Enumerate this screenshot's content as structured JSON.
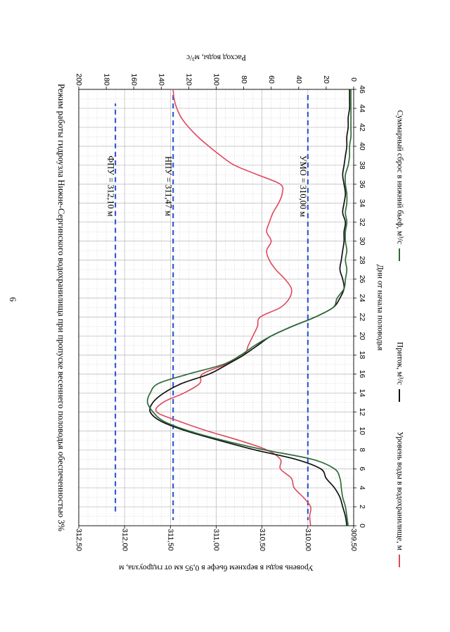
{
  "page_number": "6",
  "chart_data": {
    "type": "line",
    "title": "Режим работы гидроузла Нижне-Сергинского водохранилища при пропуске весеннего половодья обеспеченностью 3%",
    "xlabel": "Дни от начала половодья",
    "ylabel_left": "Уровень воды в верхнем бьефе в 0,95 км от гидроузла, м",
    "ylabel_right": "Расход воды, м³/с",
    "xlim": [
      0,
      46
    ],
    "x_ticks": [
      "0",
      "2",
      "4",
      "6",
      "8",
      "10",
      "12",
      "14",
      "16",
      "18",
      "20",
      "22",
      "24",
      "26",
      "28",
      "30",
      "32",
      "34",
      "36",
      "38",
      "40",
      "42",
      "44",
      "46"
    ],
    "ylim_left": [
      309.5,
      312.5
    ],
    "y_left_ticks": [
      "309,50",
      "310,00",
      "310,50",
      "311,00",
      "311,50",
      "312,00",
      "312,50"
    ],
    "ylim_right": [
      0,
      200
    ],
    "y_right_ticks": [
      "0",
      "20",
      "40",
      "60",
      "80",
      "100",
      "120",
      "140",
      "160",
      "180",
      "200"
    ],
    "grid": true,
    "legend_position": "bottom",
    "reference_lines": [
      {
        "label": "ФПУ = 312,10 м",
        "value": 312.1
      },
      {
        "label": "НПУ = 311,47 м",
        "value": 311.47
      },
      {
        "label": "УМО = 310,00 м",
        "value": 310.0
      }
    ],
    "series": [
      {
        "name": "Уровень воды в водохранилище, м",
        "axis": "left",
        "color": "#e0475d",
        "x": [
          0,
          1,
          2,
          3,
          4,
          5,
          6,
          7,
          8,
          9,
          10,
          11,
          12,
          13,
          14,
          15,
          16,
          17,
          18,
          19,
          20,
          21,
          22,
          23,
          24,
          25,
          26,
          27,
          28,
          29,
          30,
          31,
          32,
          33,
          34,
          35,
          36,
          37,
          38,
          39,
          40,
          41,
          42,
          43,
          44,
          45,
          46
        ],
        "values": [
          309.97,
          309.98,
          309.97,
          310.05,
          310.15,
          310.18,
          310.3,
          310.3,
          310.45,
          310.75,
          311.1,
          311.4,
          311.65,
          311.58,
          311.35,
          311.18,
          311.15,
          310.9,
          310.7,
          310.65,
          310.6,
          310.55,
          310.52,
          310.3,
          310.2,
          310.18,
          310.25,
          310.35,
          310.42,
          310.45,
          310.4,
          310.45,
          310.42,
          310.38,
          310.32,
          310.28,
          310.3,
          310.55,
          310.8,
          310.95,
          311.08,
          311.2,
          311.3,
          311.38,
          311.43,
          311.46,
          311.47
        ]
      },
      {
        "name": "Приток, м³/с",
        "axis": "right",
        "color": "#111111",
        "x": [
          0,
          1,
          2,
          3,
          4,
          5,
          6,
          7,
          8,
          9,
          10,
          11,
          12,
          13,
          14,
          15,
          16,
          17,
          18,
          19,
          20,
          21,
          22,
          23,
          24,
          25,
          26,
          27,
          28,
          29,
          30,
          31,
          32,
          33,
          34,
          35,
          36,
          37,
          38,
          39,
          40,
          41,
          42,
          43,
          44,
          45,
          46
        ],
        "values": [
          5,
          6,
          8,
          10,
          14,
          20,
          24,
          42,
          72,
          98,
          122,
          140,
          148,
          146,
          138,
          125,
          105,
          92,
          80,
          70,
          60,
          45,
          28,
          15,
          10,
          7,
          8,
          10,
          9,
          8,
          7,
          7,
          6,
          8,
          7,
          6,
          7,
          8,
          7,
          6,
          5,
          5,
          4,
          4,
          3,
          3,
          3
        ]
      },
      {
        "name": "Суммарный сброс в нижний бьеф, м³/с",
        "axis": "right",
        "color": "#2e6b3a",
        "x": [
          0,
          1,
          2,
          3,
          4,
          5,
          6,
          7,
          8,
          9,
          10,
          11,
          12,
          13,
          14,
          15,
          16,
          17,
          18,
          19,
          20,
          21,
          22,
          23,
          24,
          25,
          26,
          27,
          28,
          29,
          30,
          31,
          32,
          33,
          34,
          35,
          36,
          37,
          38,
          39,
          40,
          41,
          42,
          43,
          44,
          45,
          46
        ],
        "values": [
          4,
          5,
          6,
          8,
          9,
          10,
          14,
          30,
          65,
          95,
          120,
          138,
          146,
          150,
          148,
          142,
          120,
          95,
          82,
          72,
          60,
          45,
          28,
          15,
          12,
          7,
          6,
          5,
          6,
          5,
          6,
          6,
          5,
          6,
          5,
          5,
          6,
          6,
          4,
          3,
          3,
          2,
          2,
          2,
          2,
          2,
          2
        ]
      }
    ]
  }
}
